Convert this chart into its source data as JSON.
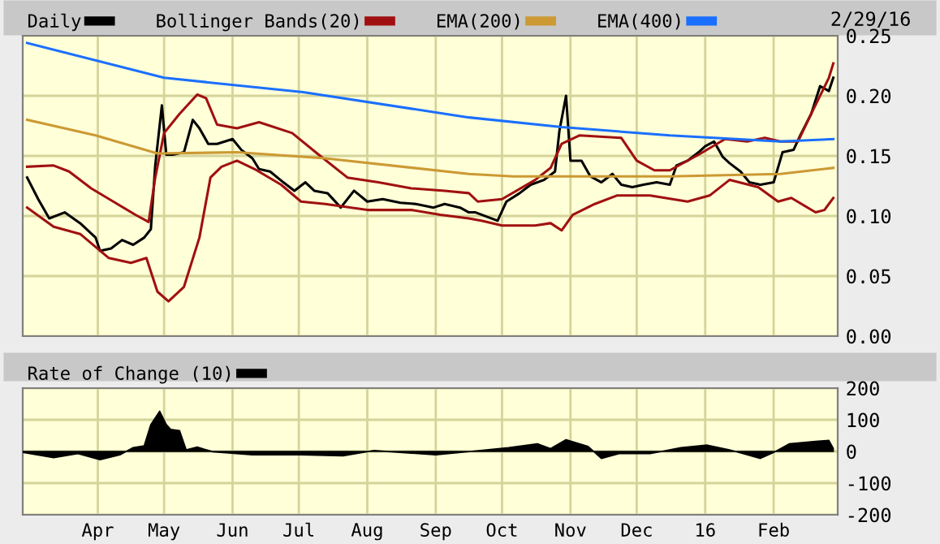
{
  "chart_data": [
    {
      "type": "line",
      "xlim": [
        "2015-02-26",
        "2016-03-01"
      ],
      "xticks": [
        {
          "value": "2015-04-01",
          "label": null
        },
        {
          "value": "2015-05-01",
          "label": null
        },
        {
          "value": "2015-06-01",
          "label": null
        },
        {
          "value": "2015-07-01",
          "label": null
        },
        {
          "value": "2015-08-01",
          "label": null
        },
        {
          "value": "2015-09-01",
          "label": null
        },
        {
          "value": "2015-10-01",
          "label": null
        },
        {
          "value": "2015-11-01",
          "label": null
        },
        {
          "value": "2015-12-01",
          "label": null
        },
        {
          "value": "2016-01-01",
          "label": null
        },
        {
          "value": "2016-02-01",
          "label": null
        }
      ],
      "ylim": [
        0,
        0.25
      ],
      "yticks": [
        {
          "value": 0,
          "label": "0.00"
        },
        {
          "value": 0.05,
          "label": "0.05"
        },
        {
          "value": 0.1,
          "label": "0.10"
        },
        {
          "value": 0.15,
          "label": "0.15"
        },
        {
          "value": 0.2,
          "label": "0.20"
        },
        {
          "value": 0.25,
          "label": "0.25"
        }
      ],
      "tick_labels": "y",
      "grid": true,
      "legend": "top",
      "annotations": [
        "2/29/16"
      ],
      "series": [
        {
          "name": "Daily",
          "color": "#000000",
          "x": [
            "2015-02-28",
            "2015-03-05",
            "2015-03-10",
            "2015-03-17",
            "2015-03-24",
            "2015-03-31",
            "2015-04-02",
            "2015-04-07",
            "2015-04-12",
            "2015-04-17",
            "2015-04-22",
            "2015-04-25",
            "2015-04-27",
            "2015-04-30",
            "2015-05-02",
            "2015-05-05",
            "2015-05-10",
            "2015-05-14",
            "2015-05-17",
            "2015-05-21",
            "2015-05-25",
            "2015-06-01",
            "2015-06-05",
            "2015-06-10",
            "2015-06-13",
            "2015-06-18",
            "2015-06-24",
            "2015-06-29",
            "2015-07-04",
            "2015-07-08",
            "2015-07-14",
            "2015-07-20",
            "2015-07-26",
            "2015-08-01",
            "2015-08-08",
            "2015-08-16",
            "2015-08-23",
            "2015-08-31",
            "2015-09-05",
            "2015-09-12",
            "2015-09-16",
            "2015-09-19",
            "2015-09-29",
            "2015-10-03",
            "2015-10-09",
            "2015-10-14",
            "2015-10-20",
            "2015-10-25",
            "2015-10-27",
            "2015-10-30",
            "2015-11-01",
            "2015-11-06",
            "2015-11-10",
            "2015-11-15",
            "2015-11-20",
            "2015-11-24",
            "2015-11-29",
            "2015-12-04",
            "2015-12-10",
            "2015-12-16",
            "2015-12-19",
            "2015-12-24",
            "2015-12-29",
            "2016-01-01",
            "2016-01-05",
            "2016-01-09",
            "2016-01-12",
            "2016-01-17",
            "2016-01-21",
            "2016-01-26",
            "2016-02-01",
            "2016-02-05",
            "2016-02-10",
            "2016-02-13",
            "2016-02-18",
            "2016-02-22",
            "2016-02-26",
            "2016-02-28"
          ],
          "values": [
            0.132,
            0.114,
            0.098,
            0.103,
            0.094,
            0.082,
            0.071,
            0.073,
            0.08,
            0.076,
            0.082,
            0.089,
            0.142,
            0.192,
            0.151,
            0.151,
            0.153,
            0.18,
            0.173,
            0.16,
            0.16,
            0.164,
            0.155,
            0.148,
            0.139,
            0.137,
            0.128,
            0.121,
            0.128,
            0.121,
            0.119,
            0.107,
            0.121,
            0.112,
            0.114,
            0.111,
            0.11,
            0.107,
            0.11,
            0.107,
            0.103,
            0.103,
            0.096,
            0.112,
            0.119,
            0.126,
            0.13,
            0.137,
            0.171,
            0.2,
            0.146,
            0.146,
            0.133,
            0.128,
            0.135,
            0.126,
            0.124,
            0.126,
            0.128,
            0.126,
            0.142,
            0.146,
            0.153,
            0.158,
            0.162,
            0.149,
            0.144,
            0.137,
            0.128,
            0.126,
            0.128,
            0.153,
            0.155,
            0.167,
            0.185,
            0.208,
            0.204,
            0.215
          ]
        },
        {
          "name": "Bollinger Bands(20)",
          "color": "#a01010",
          "x": [
            "2015-02-28",
            "2015-03-12",
            "2015-03-19",
            "2015-03-29",
            "2015-04-08",
            "2015-04-18",
            "2015-04-24",
            "2015-04-27",
            "2015-05-01",
            "2015-05-08",
            "2015-05-16",
            "2015-05-20",
            "2015-05-25",
            "2015-06-03",
            "2015-06-13",
            "2015-06-28",
            "2015-07-10",
            "2015-07-23",
            "2015-08-06",
            "2015-08-21",
            "2015-09-05",
            "2015-09-16",
            "2015-09-20",
            "2015-10-01",
            "2015-10-16",
            "2015-10-23",
            "2015-10-28",
            "2015-11-05",
            "2015-11-24",
            "2015-12-01",
            "2015-12-09",
            "2015-12-16",
            "2015-12-29",
            "2016-01-10",
            "2016-01-20",
            "2016-01-28",
            "2016-02-04",
            "2016-02-12",
            "2016-02-18",
            "2016-02-26",
            "2016-02-28"
          ],
          "values": [
            0.141,
            0.142,
            0.137,
            0.123,
            0.112,
            0.101,
            0.095,
            0.132,
            0.169,
            0.185,
            0.201,
            0.198,
            0.176,
            0.173,
            0.178,
            0.169,
            0.151,
            0.132,
            0.128,
            0.123,
            0.121,
            0.119,
            0.112,
            0.114,
            0.13,
            0.14,
            0.16,
            0.167,
            0.165,
            0.146,
            0.138,
            0.138,
            0.151,
            0.164,
            0.162,
            0.165,
            0.162,
            0.162,
            0.185,
            0.215,
            0.227
          ]
        },
        {
          "color": "#a01010",
          "x": [
            "2015-02-28",
            "2015-03-12",
            "2015-03-24",
            "2015-04-06",
            "2015-04-16",
            "2015-04-23",
            "2015-04-28",
            "2015-05-03",
            "2015-05-10",
            "2015-05-17",
            "2015-05-22",
            "2015-05-27",
            "2015-06-03",
            "2015-06-11",
            "2015-06-23",
            "2015-07-02",
            "2015-07-13",
            "2015-08-01",
            "2015-08-21",
            "2015-09-03",
            "2015-09-16",
            "2015-09-22",
            "2015-10-01",
            "2015-10-16",
            "2015-10-23",
            "2015-10-28",
            "2015-11-02",
            "2015-11-12",
            "2015-11-22",
            "2015-12-07",
            "2015-12-24",
            "2016-01-03",
            "2016-01-12",
            "2016-01-25",
            "2016-02-03",
            "2016-02-09",
            "2016-02-20",
            "2016-02-24",
            "2016-02-28"
          ],
          "values": [
            0.107,
            0.091,
            0.085,
            0.065,
            0.061,
            0.065,
            0.037,
            0.029,
            0.041,
            0.082,
            0.132,
            0.141,
            0.146,
            0.139,
            0.126,
            0.112,
            0.11,
            0.105,
            0.105,
            0.101,
            0.098,
            0.096,
            0.092,
            0.092,
            0.094,
            0.088,
            0.101,
            0.11,
            0.117,
            0.117,
            0.112,
            0.117,
            0.13,
            0.124,
            0.112,
            0.115,
            0.103,
            0.105,
            0.115
          ]
        },
        {
          "name": "EMA(200)",
          "color": "#cc9933",
          "x": [
            "2015-02-28",
            "2015-03-31",
            "2015-04-28",
            "2015-06-03",
            "2015-07-13",
            "2015-09-16",
            "2015-10-06",
            "2015-10-28",
            "2015-12-16",
            "2016-02-04",
            "2016-02-28"
          ],
          "values": [
            0.18,
            0.167,
            0.152,
            0.153,
            0.148,
            0.135,
            0.133,
            0.133,
            0.133,
            0.135,
            0.14
          ]
        },
        {
          "name": "EMA(400)",
          "color": "#1a6fff",
          "x": [
            "2015-02-28",
            "2015-05-01",
            "2015-07-03",
            "2015-09-16",
            "2015-10-28",
            "2015-12-16",
            "2016-02-04",
            "2016-02-28"
          ],
          "values": [
            0.244,
            0.215,
            0.203,
            0.182,
            0.174,
            0.167,
            0.162,
            0.164
          ]
        }
      ]
    },
    {
      "type": "area",
      "xlim": [
        "2015-02-26",
        "2016-03-01"
      ],
      "xticks": [
        {
          "value": "2015-04-01",
          "label": "Apr"
        },
        {
          "value": "2015-05-01",
          "label": "May"
        },
        {
          "value": "2015-06-01",
          "label": "Jun"
        },
        {
          "value": "2015-07-01",
          "label": "Jul"
        },
        {
          "value": "2015-08-01",
          "label": "Aug"
        },
        {
          "value": "2015-09-01",
          "label": "Sep"
        },
        {
          "value": "2015-10-01",
          "label": "Oct"
        },
        {
          "value": "2015-11-01",
          "label": "Nov"
        },
        {
          "value": "2015-12-01",
          "label": "Dec"
        },
        {
          "value": "2016-01-01",
          "label": "16"
        },
        {
          "value": "2016-02-01",
          "label": "Feb"
        }
      ],
      "ylim": [
        -200,
        200
      ],
      "yticks": [
        -200,
        -100,
        0,
        100,
        200
      ],
      "grid": true,
      "legend": "top",
      "series": [
        {
          "name": "Rate of Change (10)",
          "color": "#000000",
          "x": [
            "2015-02-26",
            "2015-03-12",
            "2015-03-23",
            "2015-04-02",
            "2015-04-11",
            "2015-04-17",
            "2015-04-22",
            "2015-04-25",
            "2015-04-29",
            "2015-05-02",
            "2015-05-04",
            "2015-05-08",
            "2015-05-11",
            "2015-05-16",
            "2015-05-23",
            "2015-06-10",
            "2015-07-02",
            "2015-07-21",
            "2015-08-04",
            "2015-09-01",
            "2015-10-04",
            "2015-10-17",
            "2015-10-23",
            "2015-10-30",
            "2015-11-09",
            "2015-11-15",
            "2015-11-23",
            "2015-12-07",
            "2015-12-21",
            "2016-01-02",
            "2016-01-12",
            "2016-01-26",
            "2016-02-01",
            "2016-02-08",
            "2016-02-20",
            "2016-02-26",
            "2016-02-28"
          ],
          "values": [
            -3,
            -20,
            -7,
            -26,
            -11,
            12,
            18,
            85,
            127,
            85,
            70,
            66,
            5,
            14,
            -1,
            -11,
            -11,
            -14,
            3,
            -11,
            12,
            24,
            9,
            37,
            16,
            -22,
            -7,
            -7,
            12,
            20,
            5,
            -22,
            -3,
            24,
            32,
            35,
            9
          ]
        }
      ]
    }
  ]
}
